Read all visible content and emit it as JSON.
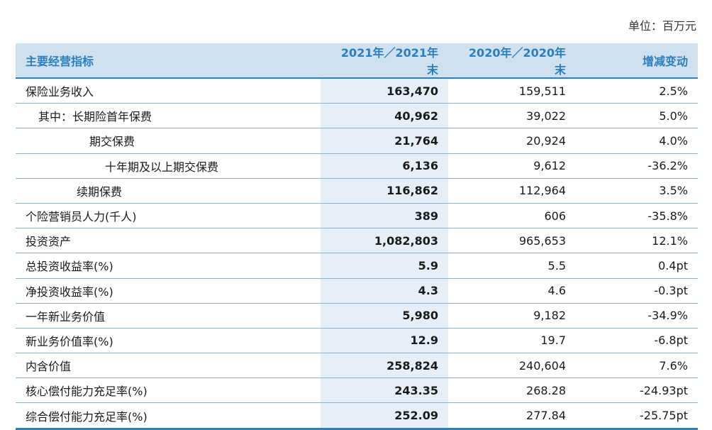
{
  "unit_label": "单位：百万元",
  "headers": [
    "主要经营指标",
    "2021年／2021年末",
    "2020年／2020年末",
    "增减变动"
  ],
  "rows": [
    {
      "label": "保险业务收入",
      "v2021": "163,470",
      "v2020": "159,511",
      "change": "2.5%"
    },
    {
      "label": "其中：长期险首年保费",
      "v2021": "40,962",
      "v2020": "39,022",
      "change": "5.0%"
    },
    {
      "label": "期交保费",
      "v2021": "21,764",
      "v2020": "20,924",
      "change": "4.0%"
    },
    {
      "label": "十年期及以上期交保费",
      "v2021": "6,136",
      "v2020": "9,612",
      "change": "-36.2%"
    },
    {
      "label": "续期保费",
      "v2021": "116,862",
      "v2020": "112,964",
      "change": "3.5%"
    },
    {
      "label": "个险营销员人力(千人)",
      "v2021": "389",
      "v2020": "606",
      "change": "-35.8%"
    },
    {
      "label": "投资资产",
      "v2021": "1,082,803",
      "v2020": "965,653",
      "change": "12.1%"
    },
    {
      "label": "总投资收益率(%)",
      "v2021": "5.9",
      "v2020": "5.5",
      "change": "0.4pt"
    },
    {
      "label": "净投资收益率(%)",
      "v2021": "4.3",
      "v2020": "4.6",
      "change": "-0.3pt"
    },
    {
      "label": "一年新业务价值",
      "v2021": "5,980",
      "v2020": "9,182",
      "change": "-34.9%"
    },
    {
      "label": "新业务价值率(%)",
      "v2021": "12.9",
      "v2020": "19.7",
      "change": "-6.8pt"
    },
    {
      "label": "内含价值",
      "v2021": "258,824",
      "v2020": "240,604",
      "change": "7.6%"
    },
    {
      "label": "核心偿付能力充足率(%)",
      "v2021": "243.35",
      "v2020": "268.28",
      "change": "-24.93pt"
    },
    {
      "label": "综合偿付能力充足率(%)",
      "v2021": "252.09",
      "v2020": "277.84",
      "change": "-25.75pt"
    }
  ]
}
